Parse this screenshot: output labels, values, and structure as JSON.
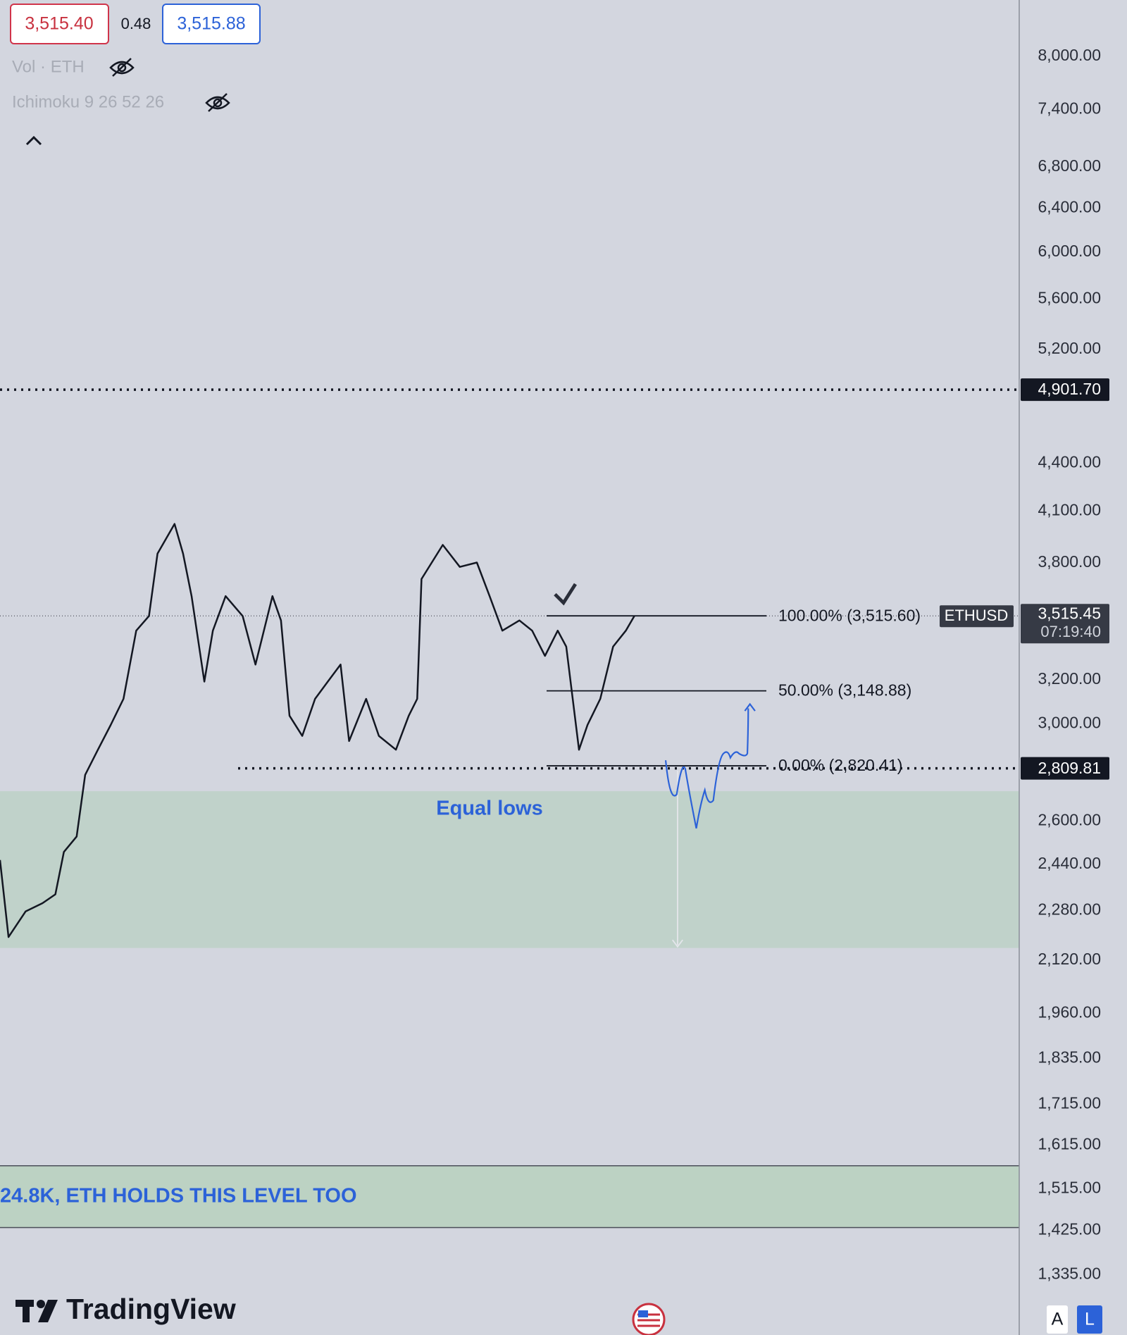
{
  "toolbar": {
    "bid": "3,515.40",
    "spread": "0.48",
    "ask": "3,515.88",
    "indicators": [
      "Vol · ETH",
      "Ichimoku 9 26 52 26"
    ]
  },
  "chart_data": {
    "type": "line",
    "log_scale": true,
    "grid": false,
    "series": [
      {
        "name": "ETHUSD",
        "color": "#131722",
        "x": [
          0,
          2,
          6,
          10,
          13,
          15,
          18,
          20,
          23,
          26,
          29,
          32,
          35,
          37,
          41,
          43,
          45,
          48,
          50,
          53,
          57,
          60,
          64,
          66,
          68,
          71,
          74,
          77,
          80,
          82,
          86,
          89,
          93,
          96,
          98,
          99,
          104,
          108,
          112,
          115,
          118,
          122,
          125,
          128,
          131,
          133,
          136,
          138,
          141,
          144,
          147,
          149
        ],
        "values": [
          2456,
          2193,
          2277,
          2305,
          2335,
          2485,
          2542,
          2783,
          2888,
          2995,
          3112,
          3440,
          3515,
          3852,
          4024,
          3852,
          3619,
          3192,
          3440,
          3619,
          3515,
          3273,
          3619,
          3492,
          3036,
          2947,
          3112,
          3192,
          3273,
          2925,
          3112,
          2947,
          2888,
          3036,
          3112,
          3711,
          3902,
          3778,
          3802,
          3619,
          3440,
          3492,
          3440,
          3315,
          3440,
          3360,
          2888,
          2995,
          3112,
          3360,
          3440,
          3515
        ]
      }
    ],
    "xlim": [
      0,
      239.4
    ],
    "ylim": [
      1222,
      8690
    ],
    "yticks": [
      {
        "value": 8000,
        "label": "8,000.00"
      },
      {
        "value": 7400,
        "label": "7,400.00"
      },
      {
        "value": 6800,
        "label": "6,800.00"
      },
      {
        "value": 6400,
        "label": "6,400.00"
      },
      {
        "value": 6000,
        "label": "6,000.00"
      },
      {
        "value": 5600,
        "label": "5,600.00"
      },
      {
        "value": 5200,
        "label": "5,200.00"
      },
      {
        "value": 4400,
        "label": "4,400.00"
      },
      {
        "value": 4100,
        "label": "4,100.00"
      },
      {
        "value": 3800,
        "label": "3,800.00"
      },
      {
        "value": 3200,
        "label": "3,200.00"
      },
      {
        "value": 3000,
        "label": "3,000.00"
      },
      {
        "value": 2600,
        "label": "2,600.00"
      },
      {
        "value": 2440,
        "label": "2,440.00"
      },
      {
        "value": 2280,
        "label": "2,280.00"
      },
      {
        "value": 2120,
        "label": "2,120.00"
      },
      {
        "value": 1960,
        "label": "1,960.00"
      },
      {
        "value": 1835,
        "label": "1,835.00"
      },
      {
        "value": 1715,
        "label": "1,715.00"
      },
      {
        "value": 1615,
        "label": "1,615.00"
      },
      {
        "value": 1515,
        "label": "1,515.00"
      },
      {
        "value": 1425,
        "label": "1,425.00"
      },
      {
        "value": 1335,
        "label": "1,335.00"
      }
    ],
    "price_lines": [
      {
        "value": 4901.7,
        "label": "4,901.70"
      },
      {
        "value": 2809.81,
        "label": "2,809.81"
      }
    ],
    "last_price": {
      "value": 3515.45,
      "label": "3,515.45",
      "countdown": "07:19:40",
      "symbol": "ETHUSD"
    },
    "fib_levels": [
      {
        "value": 3515.6,
        "label": "100.00% (3,515.60)"
      },
      {
        "value": 3148.88,
        "label": "50.00% (3,148.88)"
      },
      {
        "value": 2820.41,
        "label": "0.00% (2,820.41)"
      }
    ],
    "zones": [
      {
        "from": 2158,
        "to": 2717,
        "color": "#c0d2ca"
      },
      {
        "from": 1431,
        "to": 1567,
        "color": "#bcd2c3",
        "label": "24.8K, ETH HOLDS THIS LEVEL TOO"
      }
    ],
    "annotations": [
      "Equal lows"
    ]
  },
  "branding": "TradingView",
  "buttons": [
    "A",
    "L"
  ]
}
